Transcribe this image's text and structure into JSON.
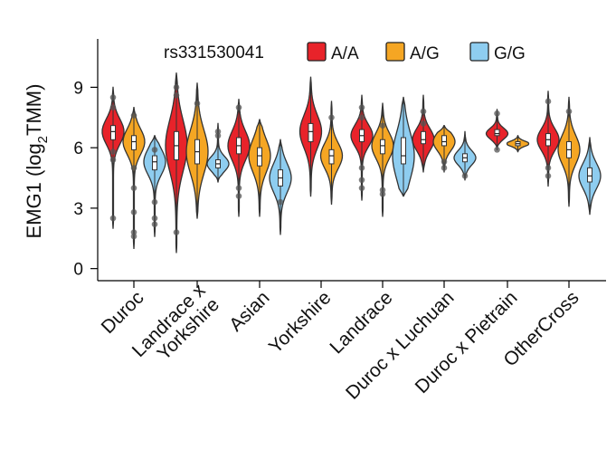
{
  "chart_data": {
    "type": "violin",
    "ylabel_main": "EMG1 (log",
    "ylabel_sub": "2",
    "ylabel_tail": "TMM)",
    "ylim": [
      -0.6,
      11.4
    ],
    "yticks": [
      0,
      3,
      6,
      9
    ],
    "legend": {
      "title": "rs331530041",
      "placement": "top",
      "entries": [
        {
          "label": "A/A",
          "color": "#e8232a"
        },
        {
          "label": "A/G",
          "color": "#f5a623"
        },
        {
          "label": "G/G",
          "color": "#8ecdf0"
        }
      ]
    },
    "categories": [
      {
        "label": [
          "Duroc"
        ],
        "groups": [
          {
            "gt": "A/A",
            "min": 2.0,
            "max": 9.0,
            "q1": 6.4,
            "median": 6.8,
            "q3": 7.1,
            "outliers": [
              2.5,
              8.5,
              8.0,
              5.8,
              5.4
            ]
          },
          {
            "gt": "A/G",
            "min": 1.0,
            "max": 8.0,
            "q1": 5.9,
            "median": 6.3,
            "q3": 6.6,
            "outliers": [
              1.6,
              1.8,
              2.8,
              4.0,
              5.0,
              7.6
            ]
          },
          {
            "gt": "G/G",
            "min": 1.6,
            "max": 6.6,
            "q1": 4.9,
            "median": 5.3,
            "q3": 5.6,
            "outliers": [
              2.2,
              2.5,
              3.3,
              5.9
            ]
          }
        ]
      },
      {
        "label": [
          "Landrace x",
          "Yorkshire"
        ],
        "groups": [
          {
            "gt": "A/A",
            "min": 0.8,
            "max": 9.7,
            "q1": 5.4,
            "median": 6.1,
            "q3": 6.8,
            "outliers": [
              1.8,
              8.6,
              9.0
            ]
          },
          {
            "gt": "A/G",
            "min": 2.5,
            "max": 9.2,
            "q1": 5.2,
            "median": 5.8,
            "q3": 6.4,
            "outliers": [
              8.2
            ]
          },
          {
            "gt": "G/G",
            "min": 4.3,
            "max": 7.2,
            "q1": 5.0,
            "median": 5.2,
            "q3": 5.4,
            "outliers": [
              6.8,
              6.6
            ]
          }
        ]
      },
      {
        "label": [
          "Asian"
        ],
        "groups": [
          {
            "gt": "A/A",
            "min": 2.6,
            "max": 8.4,
            "q1": 5.7,
            "median": 6.1,
            "q3": 6.5,
            "outliers": [
              3.6,
              4.0,
              8.0
            ]
          },
          {
            "gt": "A/G",
            "min": 2.6,
            "max": 7.4,
            "q1": 5.1,
            "median": 5.6,
            "q3": 6.0,
            "outliers": []
          },
          {
            "gt": "G/G",
            "min": 1.7,
            "max": 6.4,
            "q1": 4.1,
            "median": 4.5,
            "q3": 4.9,
            "outliers": [
              3.3
            ]
          }
        ]
      },
      {
        "label": [
          "Yorkshire"
        ],
        "groups": [
          {
            "gt": "A/A",
            "min": 3.6,
            "max": 9.5,
            "q1": 6.3,
            "median": 6.8,
            "q3": 7.2,
            "outliers": []
          },
          {
            "gt": "A/G",
            "min": 3.2,
            "max": 8.3,
            "q1": 5.2,
            "median": 5.6,
            "q3": 5.9,
            "outliers": [
              7.5
            ]
          }
        ]
      },
      {
        "label": [
          "Landrace"
        ],
        "groups": [
          {
            "gt": "A/A",
            "min": 3.4,
            "max": 8.6,
            "q1": 6.3,
            "median": 6.6,
            "q3": 6.9,
            "outliers": [
              4.0,
              4.4,
              5.0,
              8.0,
              7.5
            ]
          },
          {
            "gt": "A/G",
            "min": 2.6,
            "max": 8.2,
            "q1": 5.7,
            "median": 6.1,
            "q3": 6.4,
            "outliers": [
              3.7,
              3.9,
              7.1
            ]
          },
          {
            "gt": "G/G",
            "min": 3.6,
            "max": 8.5,
            "q1": 5.2,
            "median": 5.6,
            "q3": 6.5,
            "outliers": []
          }
        ]
      },
      {
        "label": [
          "Duroc x Luchuan"
        ],
        "groups": [
          {
            "gt": "A/A",
            "min": 4.8,
            "max": 8.6,
            "q1": 6.2,
            "median": 6.4,
            "q3": 6.8,
            "outliers": [
              7.2,
              7.8
            ]
          },
          {
            "gt": "A/G",
            "min": 4.8,
            "max": 7.1,
            "q1": 6.1,
            "median": 6.3,
            "q3": 6.6,
            "outliers": [
              5.0,
              5.3
            ]
          },
          {
            "gt": "G/G",
            "min": 4.4,
            "max": 6.8,
            "q1": 5.3,
            "median": 5.5,
            "q3": 5.7,
            "outliers": [
              4.6
            ]
          }
        ]
      },
      {
        "label": [
          "Duroc x Pietrain"
        ],
        "groups": [
          {
            "gt": "A/A",
            "min": 5.9,
            "max": 7.9,
            "q1": 6.6,
            "median": 6.7,
            "q3": 6.9,
            "outliers": [
              5.9,
              7.7
            ]
          },
          {
            "gt": "A/G",
            "min": 5.8,
            "max": 6.6,
            "q1": 6.1,
            "median": 6.2,
            "q3": 6.3,
            "outliers": []
          }
        ]
      },
      {
        "label": [
          "OtherCross"
        ],
        "groups": [
          {
            "gt": "A/A",
            "min": 4.1,
            "max": 8.8,
            "q1": 6.1,
            "median": 6.4,
            "q3": 6.7,
            "outliers": [
              4.6,
              5.0,
              8.3
            ]
          },
          {
            "gt": "A/G",
            "min": 3.1,
            "max": 8.5,
            "q1": 5.5,
            "median": 5.9,
            "q3": 6.3,
            "outliers": [
              7.8
            ]
          },
          {
            "gt": "G/G",
            "min": 2.7,
            "max": 6.5,
            "q1": 4.3,
            "median": 4.6,
            "q3": 5.0,
            "outliers": []
          }
        ]
      }
    ]
  }
}
